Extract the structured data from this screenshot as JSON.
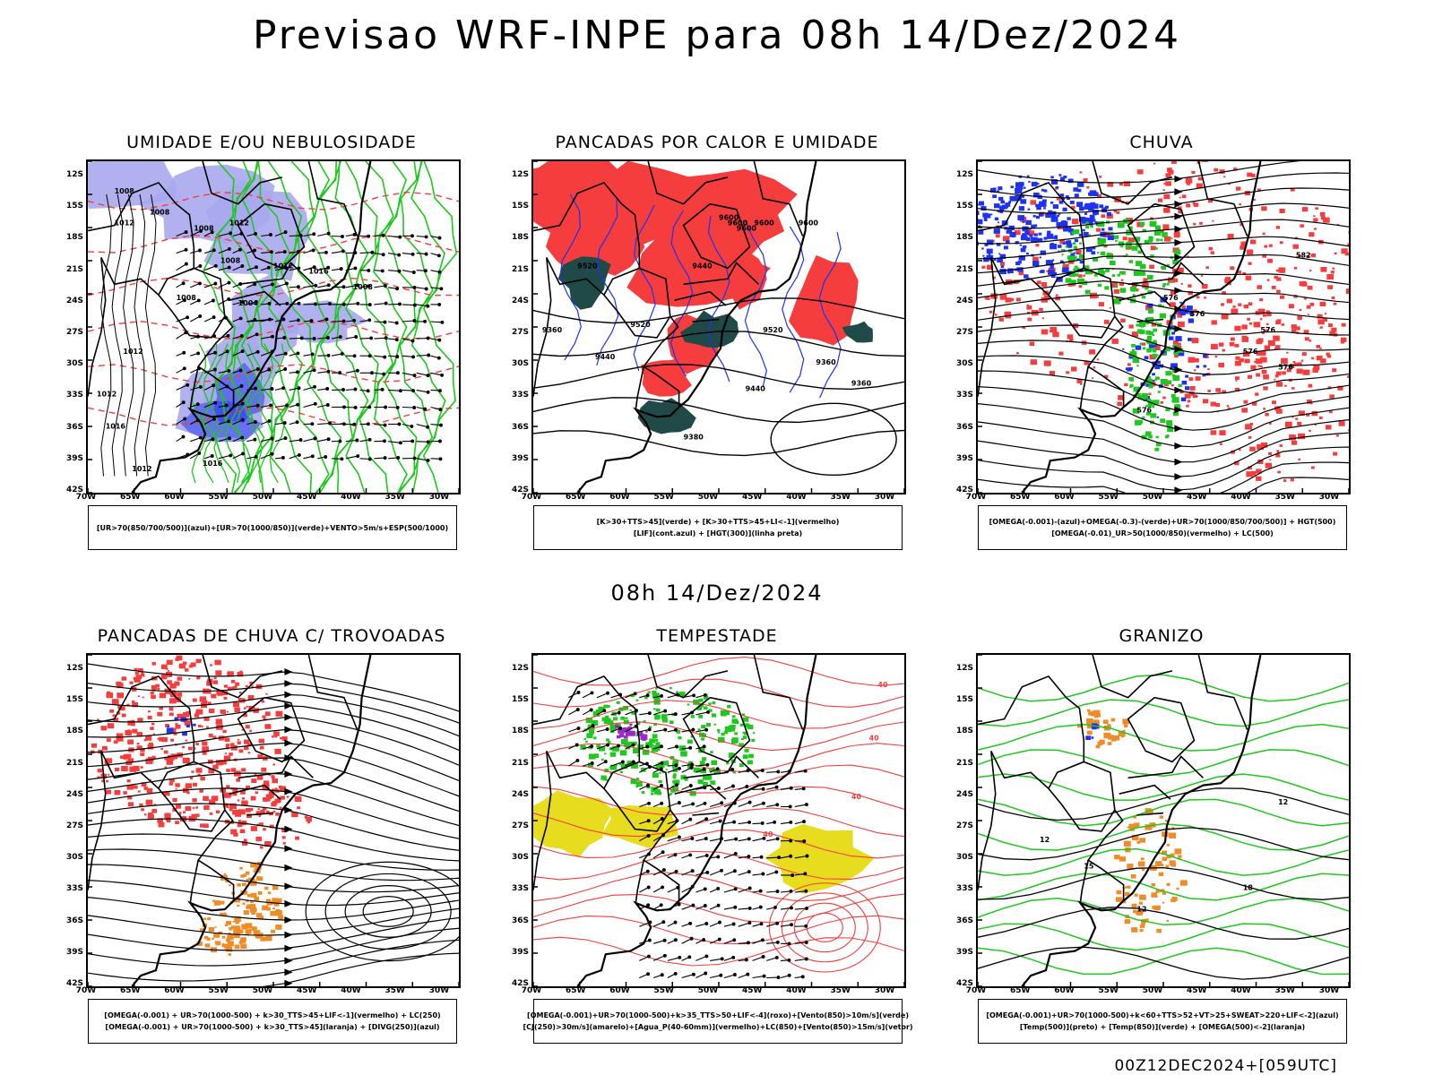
{
  "header": {
    "title": "Previsao WRF-INPE  para 08h 14/Dez/2024",
    "mid_stamp": "08h 14/Dez/2024",
    "run_stamp": "00Z12DEC2024+[059UTC]"
  },
  "axes": {
    "lat_labels": [
      "12S",
      "15S",
      "18S",
      "21S",
      "24S",
      "27S",
      "30S",
      "33S",
      "36S",
      "39S",
      "42S"
    ],
    "lon_labels": [
      "70W",
      "65W",
      "60W",
      "55W",
      "50W",
      "45W",
      "40W",
      "35W",
      "30W"
    ]
  },
  "panels": [
    {
      "title": "UMIDADE E/OU NEBULOSIDADE",
      "legend": [
        "[UR>70(850/700/500)](azul)+[UR>70(1000/850)](verde)+VENTO>5m/s+ESP(500/1000)"
      ],
      "contour_labels": [
        "1008",
        "1008",
        "1012",
        "1008",
        "1012",
        "1008",
        "1012",
        "1016",
        "1008",
        "1008",
        "1004",
        "1012",
        "1012",
        "1016",
        "1012",
        "1016"
      ]
    },
    {
      "title": "PANCADAS POR CALOR E UMIDADE",
      "legend": [
        "[K>30+TTS>45](verde) + [K>30+TTS>45+LI<-1](vermelho)",
        "[LIF](cont.azul) + [HGT(300)](linha preta)"
      ],
      "contour_labels": [
        "9600",
        "9600",
        "9600",
        "9600",
        "9600",
        "9520",
        "9440",
        "9520",
        "9440",
        "9360",
        "9520",
        "9440",
        "9360",
        "9360",
        "9380"
      ]
    },
    {
      "title": "CHUVA",
      "legend": [
        "[OMEGA(-0.001)-(azul)+OMEGA(-0.3)-(verde)+UR>70(1000/850/700/500)] + HGT(500)",
        "[OMEGA(-0.01)_UR>50(1000/850)(vermelho) + LC(500)"
      ],
      "contour_labels": [
        "576",
        "576",
        "576",
        "576",
        "576",
        "576",
        "582"
      ]
    },
    {
      "title": "PANCADAS DE CHUVA C/ TROVOADAS",
      "legend": [
        "[OMEGA(-0.001) + UR>70(1000-500) + k>30_TTS>45+LIF<-1](vermelho) + LC(250)",
        "[OMEGA(-0.001) + UR>70(1000-500) + k>30_TTS>45](laranja) + [DIVG(250)](azul)"
      ],
      "contour_labels": []
    },
    {
      "title": "TEMPESTADE",
      "legend": [
        "[OMEGA(-0.001)+UR>70(1000-500)+k>35_TTS>50+LIF<-4](roxo)+[Vento(850)>10m/s](verde)",
        "[CJ(250)>30m/s](amarelo)+[Agua_P(40-60mm)](vermelho)+LC(850)+[Vento(850)>15m/s](vetor)"
      ],
      "contour_labels": [
        "40",
        "40",
        "40",
        "40"
      ]
    },
    {
      "title": "GRANIZO",
      "legend": [
        "[OMEGA(-0.001)+UR>70(1000-500)+k<60+TTS>52+VT>25+SWEAT>220+LIF<-2](azul)",
        "[Temp(500)](preto) + [Temp(850)](verde) + [OMEGA(500)<-2](laranja)"
      ],
      "contour_labels": [
        "12",
        "15",
        "12",
        "18",
        "12"
      ]
    }
  ],
  "colors": {
    "red": "#f53d3d",
    "green": "#1ec81e",
    "blue": "#1e32f0",
    "lavender": "#a8a8ee",
    "dark_teal": "#1f4a48",
    "yellow": "#e8dc1e",
    "orange": "#f08c28",
    "purple": "#a028c8"
  }
}
